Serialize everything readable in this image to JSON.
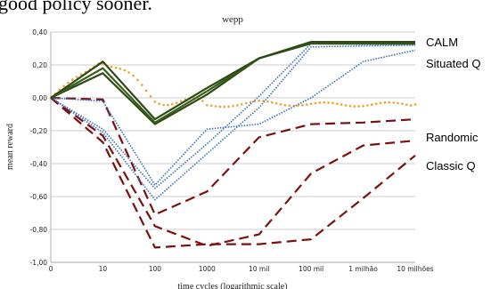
{
  "page": {
    "top_text": "good policy sooner."
  },
  "chart_data": {
    "type": "line",
    "title": "wepp",
    "xlabel": "time cycles (logarithmic scale)",
    "ylabel": "mean reward",
    "categories": [
      "0",
      "10",
      "100",
      "1000",
      "10 mil",
      "100 mil",
      "1 milhão",
      "10 milhões"
    ],
    "ylim": [
      -1.0,
      0.4
    ],
    "yticks": [
      "0,40",
      "0,20",
      "0,00",
      "-0,20",
      "-0,40",
      "-0,60",
      "-0,80",
      "-1,00"
    ],
    "ytick_values": [
      0.4,
      0.2,
      0.0,
      -0.2,
      -0.4,
      -0.6,
      -0.8,
      -1.0
    ],
    "grid": true,
    "series": [
      {
        "name": "CALM",
        "style": "solid",
        "color": "#2d4a14",
        "values": [
          0.0,
          0.22,
          -0.13,
          0.06,
          0.24,
          0.34,
          0.34,
          0.34
        ]
      },
      {
        "name": "",
        "style": "solid",
        "color": "#3b5e1a",
        "values": [
          0.0,
          0.18,
          -0.15,
          0.04,
          0.24,
          0.335,
          0.335,
          0.335
        ]
      },
      {
        "name": "",
        "style": "solid",
        "color": "#2d4a14",
        "values": [
          0.0,
          0.15,
          -0.16,
          0.02,
          0.24,
          0.33,
          0.33,
          0.33
        ]
      },
      {
        "name": "Situated Q",
        "style": "dotted",
        "color": "#3a6fb5",
        "values": [
          0.0,
          -0.02,
          -0.53,
          -0.19,
          -0.16,
          0.0,
          0.22,
          0.29
        ]
      },
      {
        "name": "",
        "style": "dotted",
        "color": "#3a6fb5",
        "values": [
          0.0,
          -0.21,
          -0.62,
          -0.34,
          -0.06,
          0.31,
          0.315,
          0.32
        ]
      },
      {
        "name": "",
        "style": "dotted",
        "color": "#3a6fb5",
        "values": [
          0.0,
          -0.19,
          -0.55,
          -0.28,
          0.01,
          0.33,
          0.325,
          0.325
        ]
      },
      {
        "name": "Randomic",
        "style": "noisy",
        "color": "#f0a030",
        "values": [
          0.0,
          0.24,
          0.0,
          -0.05,
          -0.03,
          -0.04,
          -0.04,
          -0.04
        ]
      },
      {
        "name": "Classic Q",
        "style": "dashed",
        "color": "#7a1010",
        "values": [
          0.0,
          -0.01,
          -0.71,
          -0.57,
          -0.24,
          -0.16,
          -0.15,
          -0.13
        ]
      },
      {
        "name": "",
        "style": "dashed",
        "color": "#7a1010",
        "values": [
          0.0,
          -0.23,
          -0.78,
          -0.9,
          -0.83,
          -0.46,
          -0.29,
          -0.26
        ]
      },
      {
        "name": "",
        "style": "dashed",
        "color": "#7a1010",
        "values": [
          0.0,
          -0.27,
          -0.91,
          -0.89,
          -0.89,
          -0.86,
          -0.61,
          -0.35
        ]
      }
    ],
    "legend": [
      {
        "label": "CALM",
        "series": 0
      },
      {
        "label": "Situated Q",
        "series": 3
      },
      {
        "label": "Randomic",
        "series": 6
      },
      {
        "label": "Classic Q",
        "series": 7
      }
    ]
  }
}
